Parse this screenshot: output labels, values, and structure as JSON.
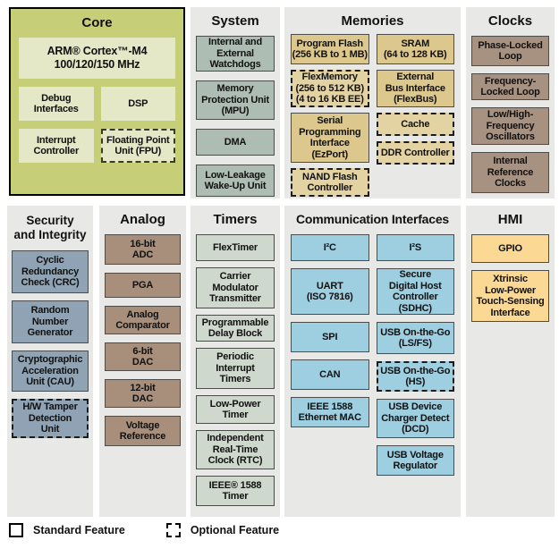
{
  "legend": {
    "standard_label": "Standard Feature",
    "optional_label": "Optional Feature"
  },
  "panels": [
    {
      "id": "core",
      "title": "Core",
      "colors": {
        "panel": "#c6ce78",
        "block": "#e4e8c6"
      },
      "wide_block": {
        "label": "ARM® Cortex™-M4\n100/120/150 MHz"
      },
      "columns": [
        [
          {
            "label": "Debug\nInterfaces"
          },
          {
            "label": "Interrupt\nController"
          }
        ],
        [
          {
            "label": "DSP"
          },
          {
            "label": "Floating Point\nUnit (FPU)",
            "optional": true
          }
        ]
      ]
    },
    {
      "id": "system",
      "title": "System",
      "colors": {
        "panel": "#e8e8e7",
        "block": "#aebdb3"
      },
      "columns": [
        [
          {
            "label": "Internal and\nExternal\nWatchdogs"
          },
          {
            "label": "Memory\nProtection Unit\n(MPU)"
          },
          {
            "label": "DMA"
          },
          {
            "label": "Low-Leakage\nWake-Up Unit"
          }
        ]
      ]
    },
    {
      "id": "memories",
      "title": "Memories",
      "colors": {
        "panel": "#e8e8e7",
        "block": "#dcc78d",
        "optional_block": "#e3d2a2"
      },
      "columns": [
        [
          {
            "label": "Program Flash\n(256 KB to 1 MB)"
          },
          {
            "label": "FlexMemory\n(256 to 512 KB)\n(4 to 16 KB EE)",
            "optional": true
          },
          {
            "label": "Serial\nProgramming\nInterface\n(EzPort)"
          },
          {
            "label": "NAND Flash\nController",
            "optional": true
          }
        ],
        [
          {
            "label": "SRAM\n(64 to 128 KB)"
          },
          {
            "label": "External\nBus Interface\n(FlexBus)"
          },
          {
            "label": "Cache",
            "optional": true
          },
          {
            "label": "DDR Controller",
            "optional": true
          }
        ]
      ]
    },
    {
      "id": "clocks",
      "title": "Clocks",
      "colors": {
        "panel": "#e8e8e7",
        "block": "#a79181"
      },
      "columns": [
        [
          {
            "label": "Phase-Locked\nLoop"
          },
          {
            "label": "Frequency-\nLocked Loop"
          },
          {
            "label": "Low/High-\nFrequency\nOscillators"
          },
          {
            "label": "Internal\nReference\nClocks"
          }
        ]
      ]
    },
    {
      "id": "security",
      "title": "Security\nand Integrity",
      "colors": {
        "panel": "#e8e8e7",
        "block": "#8fa3b4"
      },
      "columns": [
        [
          {
            "label": "Cyclic\nRedundancy\nCheck (CRC)"
          },
          {
            "label": "Random\nNumber\nGenerator"
          },
          {
            "label": "Cryptographic\nAcceleration\nUnit (CAU)"
          },
          {
            "label": "H/W Tamper\nDetection\nUnit",
            "optional": true
          }
        ]
      ]
    },
    {
      "id": "analog",
      "title": "Analog",
      "colors": {
        "panel": "#e8e8e7",
        "block": "#a78f7b"
      },
      "columns": [
        [
          {
            "label": "16-bit\nADC"
          },
          {
            "label": "PGA"
          },
          {
            "label": "Analog\nComparator"
          },
          {
            "label": "6-bit\nDAC"
          },
          {
            "label": "12-bit\nDAC"
          },
          {
            "label": "Voltage\nReference"
          }
        ]
      ]
    },
    {
      "id": "timers",
      "title": "Timers",
      "colors": {
        "panel": "#e8e8e7",
        "block": "#cfd8cd"
      },
      "columns": [
        [
          {
            "label": "FlexTimer"
          },
          {
            "label": "Carrier\nModulator\nTransmitter"
          },
          {
            "label": "Programmable\nDelay Block"
          },
          {
            "label": "Periodic\nInterrupt\nTimers"
          },
          {
            "label": "Low-Power\nTimer"
          },
          {
            "label": "Independent\nReal-Time\nClock (RTC)"
          },
          {
            "label": "IEEE® 1588\nTimer"
          }
        ]
      ]
    },
    {
      "id": "comm",
      "title": "Communication Interfaces",
      "colors": {
        "panel": "#e8e8e7",
        "block": "#9dcfe1"
      },
      "columns": [
        [
          {
            "label": "I²C"
          },
          {
            "label": "UART\n(ISO 7816)"
          },
          {
            "label": "SPI"
          },
          {
            "label": "CAN"
          },
          {
            "label": "IEEE 1588\nEthernet MAC"
          }
        ],
        [
          {
            "label": "I²S"
          },
          {
            "label": "Secure\nDigital Host\nController\n(SDHC)"
          },
          {
            "label": "USB On-the-Go\n(LS/FS)"
          },
          {
            "label": "USB On-the-Go\n(HS)",
            "optional": true
          },
          {
            "label": "USB Device\nCharger Detect\n(DCD)"
          },
          {
            "label": "USB Voltage\nRegulator"
          }
        ]
      ]
    },
    {
      "id": "hmi",
      "title": "HMI",
      "colors": {
        "panel": "#e8e8e7",
        "block": "#fbd994"
      },
      "columns": [
        [
          {
            "label": "GPIO"
          },
          {
            "label": "Xtrinsic\nLow-Power\nTouch-Sensing\nInterface"
          }
        ]
      ]
    }
  ]
}
